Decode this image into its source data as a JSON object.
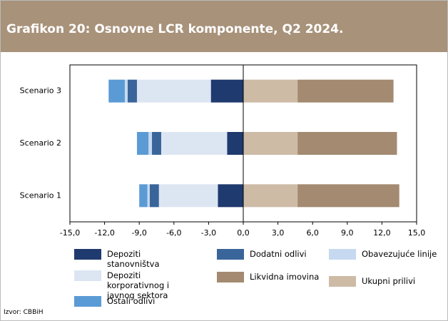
{
  "chart_data": {
    "type": "stacked_bar_horizontal",
    "title": "Grafikon 20: Osnovne LCR komponente, Q2 2024.",
    "source": "Izvor: CBBiH",
    "categories": [
      "Scenario 3",
      "Scenario 2",
      "Scenario 1"
    ],
    "series": [
      {
        "name": "Depoziti stanovništva",
        "color": "#1f3a6e",
        "values": [
          -2.8,
          -1.4,
          -2.2
        ]
      },
      {
        "name": "Depoziti korporativnog i javnog sektora",
        "color": "#dce6f2",
        "values": [
          -6.4,
          -5.7,
          -5.1
        ]
      },
      {
        "name": "Dodatni odlivi",
        "color": "#3a659a",
        "values": [
          -0.8,
          -0.8,
          -0.8
        ]
      },
      {
        "name": "Obavezujuće linije",
        "color": "#c6d9f0",
        "values": [
          -0.25,
          -0.3,
          -0.2
        ]
      },
      {
        "name": "Ostali odlivi",
        "color": "#5b9bd5",
        "values": [
          -1.4,
          -1.0,
          -0.7
        ]
      },
      {
        "name": "Ukupni prilivi",
        "color": "#cdbba6",
        "values": [
          4.7,
          4.7,
          4.7
        ]
      },
      {
        "name": "Likvidna imovina",
        "color": "#a38a70",
        "values": [
          8.3,
          8.6,
          8.8
        ]
      }
    ],
    "xlim": [
      -15,
      15
    ],
    "xticks": [
      {
        "value": -15,
        "label": "-15,0"
      },
      {
        "value": -12,
        "label": "-12,0"
      },
      {
        "value": -9,
        "label": "-9,0"
      },
      {
        "value": -6,
        "label": "-6,0"
      },
      {
        "value": -3,
        "label": "-3,0"
      },
      {
        "value": 0,
        "label": "0,0"
      },
      {
        "value": 3,
        "label": "3,0"
      },
      {
        "value": 6,
        "label": "6,0"
      },
      {
        "value": 9,
        "label": "9,0"
      },
      {
        "value": 12,
        "label": "12,0"
      },
      {
        "value": 15,
        "label": "15,0"
      }
    ]
  }
}
